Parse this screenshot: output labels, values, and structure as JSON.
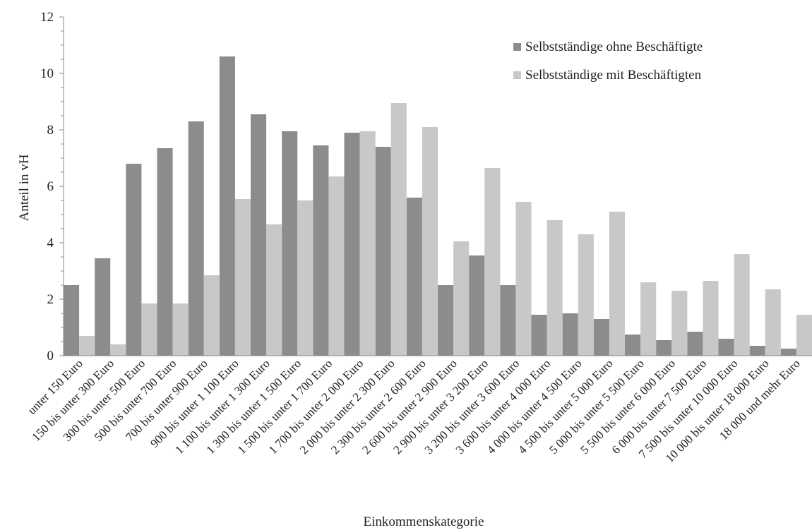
{
  "chart_data": {
    "type": "bar",
    "title": "",
    "xlabel": "Einkommenskategorie",
    "ylabel": "Anteil in vH",
    "ylim": [
      0,
      12
    ],
    "yticks": [
      0,
      2,
      4,
      6,
      8,
      10,
      12
    ],
    "grid": false,
    "legend_position": "top-right",
    "categories": [
      "unter 150 Euro",
      "150 bis unter 300 Euro",
      "300 bis unter 500 Euro",
      "500 bis unter 700 Euro",
      "700 bis unter 900 Euro",
      "900 bis unter 1 100 Euro",
      "1 100 bis unter 1 300 Euro",
      "1 300 bis unter 1 500 Euro",
      "1 500 bis unter 1 700 Euro",
      "1 700 bis unter 2 000 Euro",
      "2 000 bis unter 2 300 Euro",
      "2 300 bis unter 2 600 Euro",
      "2 600 bis unter 2 900 Euro",
      "2 900 bis unter 3 200 Euro",
      "3 200 bis unter 3 600 Euro",
      "3 600 bis unter 4 000 Euro",
      "4 000 bis unter 4 500 Euro",
      "4 500 bis unter 5 000 Euro",
      "5 000 bis unter 5 500 Euro",
      "5 500 bis unter 6 000 Euro",
      "6 000 bis unter 7 500 Euro",
      "7 500 bis unter 10 000 Euro",
      "10 000 bis unter 18 000 Euro",
      "18 000 und mehr Euro"
    ],
    "series": [
      {
        "name": "Selbstständige ohne Beschäftigte",
        "color": "#8c8c8e",
        "values": [
          2.5,
          3.45,
          6.8,
          7.35,
          8.3,
          10.6,
          8.55,
          7.95,
          7.45,
          7.9,
          7.4,
          5.6,
          2.5,
          3.55,
          2.5,
          1.45,
          1.5,
          1.3,
          0.75,
          0.55,
          0.85,
          0.6,
          0.35,
          0.25
        ]
      },
      {
        "name": "Selbstständige mit Beschäftigten",
        "color": "#c8c8c9",
        "values": [
          0.7,
          0.4,
          1.85,
          1.85,
          2.85,
          5.55,
          4.65,
          5.5,
          6.35,
          7.95,
          8.95,
          8.1,
          4.05,
          6.65,
          5.45,
          4.8,
          4.3,
          5.1,
          2.6,
          2.3,
          2.65,
          3.6,
          2.35,
          1.45
        ]
      }
    ]
  }
}
